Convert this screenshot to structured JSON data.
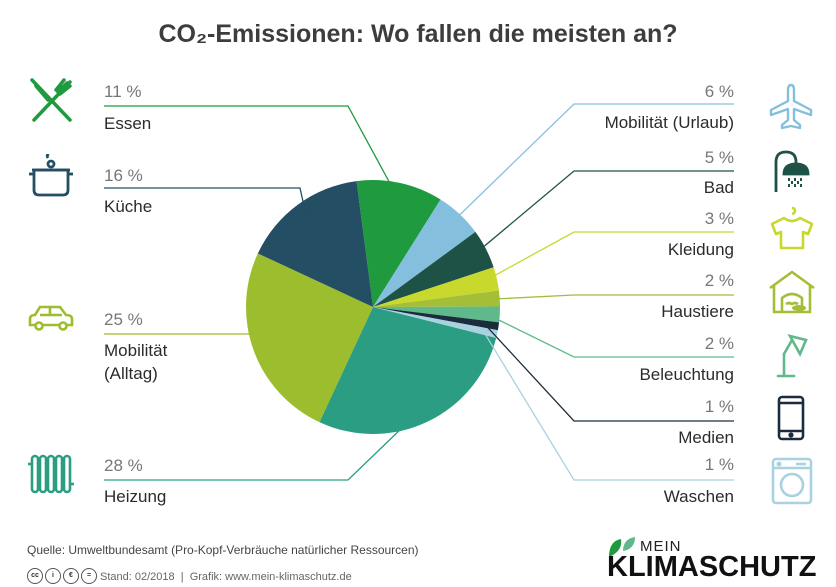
{
  "chart_data": {
    "type": "pie",
    "title": "CO₂-Emissionen: Wo fallen die meisten an?",
    "slices": [
      {
        "label": "Essen",
        "value": 11,
        "pct_label": "11 %",
        "color": "#1f9a3e",
        "icon": "cutlery-icon"
      },
      {
        "label": "Mobilität (Urlaub)",
        "value": 6,
        "pct_label": "6 %",
        "color": "#84c0de",
        "icon": "airplane-icon"
      },
      {
        "label": "Bad",
        "value": 5,
        "pct_label": "5 %",
        "color": "#1f5247",
        "icon": "shower-icon"
      },
      {
        "label": "Kleidung",
        "value": 3,
        "pct_label": "3 %",
        "color": "#c8d82c",
        "icon": "tshirt-icon"
      },
      {
        "label": "Haustiere",
        "value": 2,
        "pct_label": "2 %",
        "color": "#a3be37",
        "icon": "doghouse-icon"
      },
      {
        "label": "Beleuchtung",
        "value": 2,
        "pct_label": "2 %",
        "color": "#5fb98a",
        "icon": "desk-lamp-icon"
      },
      {
        "label": "Medien",
        "value": 1,
        "pct_label": "1 %",
        "color": "#1b2d3d",
        "icon": "smartphone-icon"
      },
      {
        "label": "Waschen",
        "value": 1,
        "pct_label": "1 %",
        "color": "#a9d2e0",
        "icon": "washing-machine-icon"
      },
      {
        "label": "Heizung",
        "value": 28,
        "pct_label": "28 %",
        "color": "#2a9d82",
        "icon": "radiator-icon"
      },
      {
        "label": "Mobilität (Alltag)",
        "value": 25,
        "pct_label": "25 %",
        "color": "#9cbd2d",
        "icon": "car-icon"
      },
      {
        "label": "Küche",
        "value": 16,
        "pct_label": "16 %",
        "color": "#234e63",
        "icon": "cooking-pot-icon"
      }
    ],
    "legend_placement": "left and right of pie with leader lines"
  },
  "left_labels": {
    "essen": {
      "pct": "11 %",
      "name": "Essen"
    },
    "kueche": {
      "pct": "16 %",
      "name": "Küche"
    },
    "mobil_alltag": {
      "pct": "25 %",
      "name_line1": "Mobilität",
      "name_line2": "(Alltag)"
    },
    "heizung": {
      "pct": "28 %",
      "name": "Heizung"
    }
  },
  "right_labels": {
    "urlaub": {
      "pct": "6 %",
      "name": "Mobilität (Urlaub)"
    },
    "bad": {
      "pct": "5 %",
      "name": "Bad"
    },
    "kleidung": {
      "pct": "3 %",
      "name": "Kleidung"
    },
    "haustiere": {
      "pct": "2 %",
      "name": "Haustiere"
    },
    "beleuchtung": {
      "pct": "2 %",
      "name": "Beleuchtung"
    },
    "medien": {
      "pct": "1 %",
      "name": "Medien"
    },
    "waschen": {
      "pct": "1 %",
      "name": "Waschen"
    }
  },
  "footer": {
    "source": "Quelle: Umweltbundesamt (Pro-Kopf-Verbräuche natürlicher Ressourcen)",
    "credits": "Stand: 02/2018  |  Grafik: www.mein-klimaschutz.de",
    "cc_badges": [
      "cc",
      "i",
      "€",
      "="
    ]
  },
  "logo": {
    "line1": "MEIN",
    "line2": "KLIMASCHUTZ"
  }
}
